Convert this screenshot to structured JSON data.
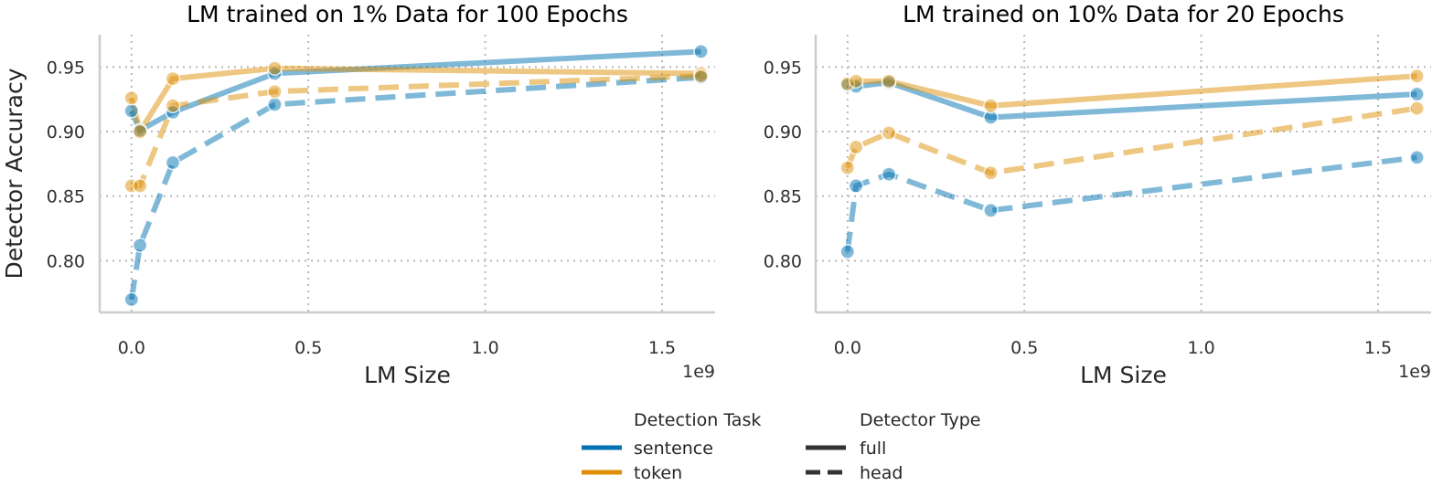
{
  "chart_data": [
    {
      "type": "line",
      "title": "LM trained on 1% Data for 100 Epochs",
      "xlabel": "LM Size",
      "ylabel": "Detector Accuracy",
      "x_offset_label": "1e9",
      "xlim": [
        -0.09,
        1.65
      ],
      "ylim": [
        0.76,
        0.975
      ],
      "x_ticks": [
        0.0,
        0.5,
        1.0,
        1.5
      ],
      "x_tick_labels": [
        "0.0",
        "0.5",
        "1.0",
        "1.5"
      ],
      "y_ticks": [
        0.8,
        0.85,
        0.9,
        0.95
      ],
      "y_tick_labels": [
        "0.80",
        "0.85",
        "0.90",
        "0.95"
      ],
      "grid": true,
      "series": [
        {
          "name": "sentence, full",
          "task": "sentence",
          "detector": "full",
          "x": [
            0.0,
            0.024,
            0.117,
            0.405,
            1.61
          ],
          "y": [
            0.916,
            0.901,
            0.915,
            0.945,
            0.962
          ]
        },
        {
          "name": "token, full",
          "task": "token",
          "detector": "full",
          "x": [
            0.0,
            0.024,
            0.117,
            0.405,
            1.61
          ],
          "y": [
            0.926,
            0.9,
            0.941,
            0.949,
            0.945
          ]
        },
        {
          "name": "sentence, head",
          "task": "sentence",
          "detector": "head",
          "x": [
            0.0,
            0.024,
            0.117,
            0.405,
            1.61
          ],
          "y": [
            0.77,
            0.812,
            0.876,
            0.921,
            0.942
          ]
        },
        {
          "name": "token, head",
          "task": "token",
          "detector": "head",
          "x": [
            0.0,
            0.024,
            0.117,
            0.405,
            1.61
          ],
          "y": [
            0.858,
            0.858,
            0.92,
            0.931,
            0.943
          ]
        }
      ]
    },
    {
      "type": "line",
      "title": "LM trained on 10% Data for 20 Epochs",
      "xlabel": "LM Size",
      "ylabel": "",
      "x_offset_label": "1e9",
      "xlim": [
        -0.09,
        1.65
      ],
      "ylim": [
        0.76,
        0.975
      ],
      "x_ticks": [
        0.0,
        0.5,
        1.0,
        1.5
      ],
      "x_tick_labels": [
        "0.0",
        "0.5",
        "1.0",
        "1.5"
      ],
      "y_ticks": [
        0.8,
        0.85,
        0.9,
        0.95
      ],
      "y_tick_labels": [
        "0.80",
        "0.85",
        "0.90",
        "0.95"
      ],
      "grid": true,
      "series": [
        {
          "name": "sentence, full",
          "task": "sentence",
          "detector": "full",
          "x": [
            0.0,
            0.024,
            0.117,
            0.405,
            1.61
          ],
          "y": [
            0.936,
            0.935,
            0.938,
            0.911,
            0.929
          ]
        },
        {
          "name": "token, full",
          "task": "token",
          "detector": "full",
          "x": [
            0.0,
            0.024,
            0.117,
            0.405,
            1.61
          ],
          "y": [
            0.937,
            0.939,
            0.939,
            0.92,
            0.943
          ]
        },
        {
          "name": "sentence, head",
          "task": "sentence",
          "detector": "head",
          "x": [
            0.0,
            0.024,
            0.117,
            0.405,
            1.61
          ],
          "y": [
            0.807,
            0.858,
            0.867,
            0.839,
            0.88
          ]
        },
        {
          "name": "token, head",
          "task": "token",
          "detector": "head",
          "x": [
            0.0,
            0.024,
            0.117,
            0.405,
            1.61
          ],
          "y": [
            0.872,
            0.888,
            0.899,
            0.868,
            0.918
          ]
        }
      ]
    }
  ],
  "legend": {
    "placement": "bottom-center",
    "task_title": "Detection Task",
    "task_items": [
      {
        "label": "sentence",
        "color": "#0173b2"
      },
      {
        "label": "token",
        "color": "#de8f05"
      }
    ],
    "detector_title": "Detector Type",
    "detector_items": [
      {
        "label": "full",
        "style": "solid"
      },
      {
        "label": "head",
        "style": "dashed"
      }
    ]
  },
  "colors": {
    "sentence": "#0173b2",
    "token": "#de8f05",
    "legend_style_line": "#333333"
  }
}
